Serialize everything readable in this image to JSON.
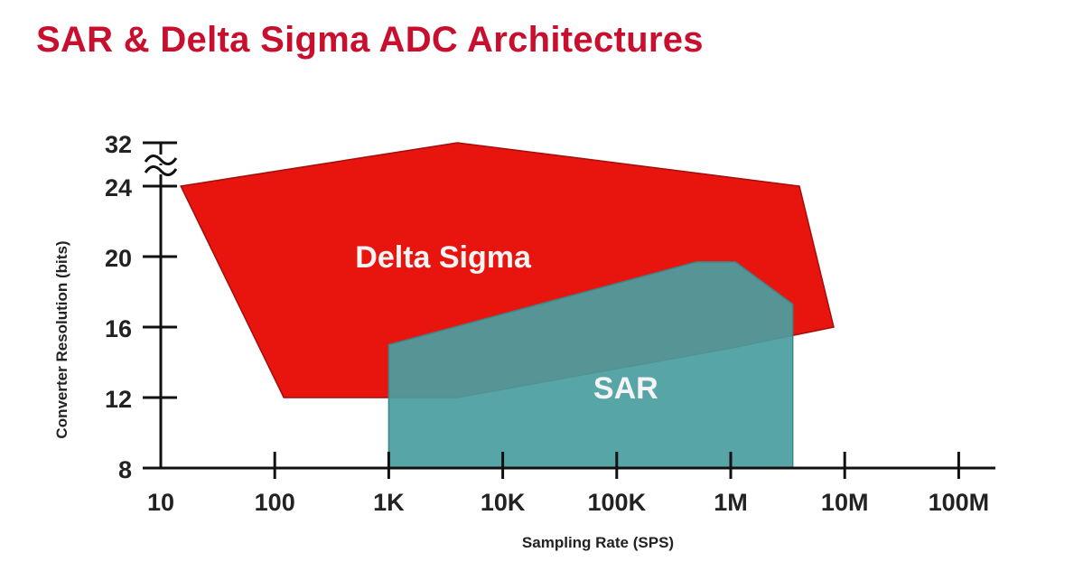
{
  "title": "SAR & Delta Sigma ADC Architectures",
  "chart_data": {
    "type": "area",
    "xlabel": "Sampling Rate (SPS)",
    "ylabel": "Converter Resolution (bits)",
    "x_scale": "log",
    "xlim": [
      10,
      100000000
    ],
    "ylim": [
      8,
      32
    ],
    "axis_break": "between 24 and 32",
    "x_ticks": [
      {
        "value": 10,
        "label": "10"
      },
      {
        "value": 100,
        "label": "100"
      },
      {
        "value": 1000,
        "label": "1K"
      },
      {
        "value": 10000,
        "label": "10K"
      },
      {
        "value": 100000,
        "label": "100K"
      },
      {
        "value": 1000000,
        "label": "1M"
      },
      {
        "value": 10000000,
        "label": "10M"
      },
      {
        "value": 100000000,
        "label": "100M"
      }
    ],
    "y_ticks": [
      {
        "value": 8,
        "label": "8"
      },
      {
        "value": 12,
        "label": "12"
      },
      {
        "value": 16,
        "label": "16"
      },
      {
        "value": 20,
        "label": "20"
      },
      {
        "value": 24,
        "label": "24"
      },
      {
        "value": 32,
        "label": "32"
      }
    ],
    "series": [
      {
        "name": "Delta Sigma",
        "color": "#e8150f",
        "points": [
          [
            15,
            24
          ],
          [
            4000,
            32
          ],
          [
            4000000,
            24
          ],
          [
            8000000,
            16
          ],
          [
            1000000,
            14.8
          ],
          [
            4000,
            12
          ],
          [
            120,
            12
          ]
        ]
      },
      {
        "name": "SAR",
        "color": "#4a9ea0",
        "points": [
          [
            1000,
            8
          ],
          [
            1000,
            15
          ],
          [
            500000,
            19.7
          ],
          [
            1100000,
            19.7
          ],
          [
            3500000,
            17.3
          ],
          [
            3500000,
            8
          ]
        ]
      }
    ]
  }
}
